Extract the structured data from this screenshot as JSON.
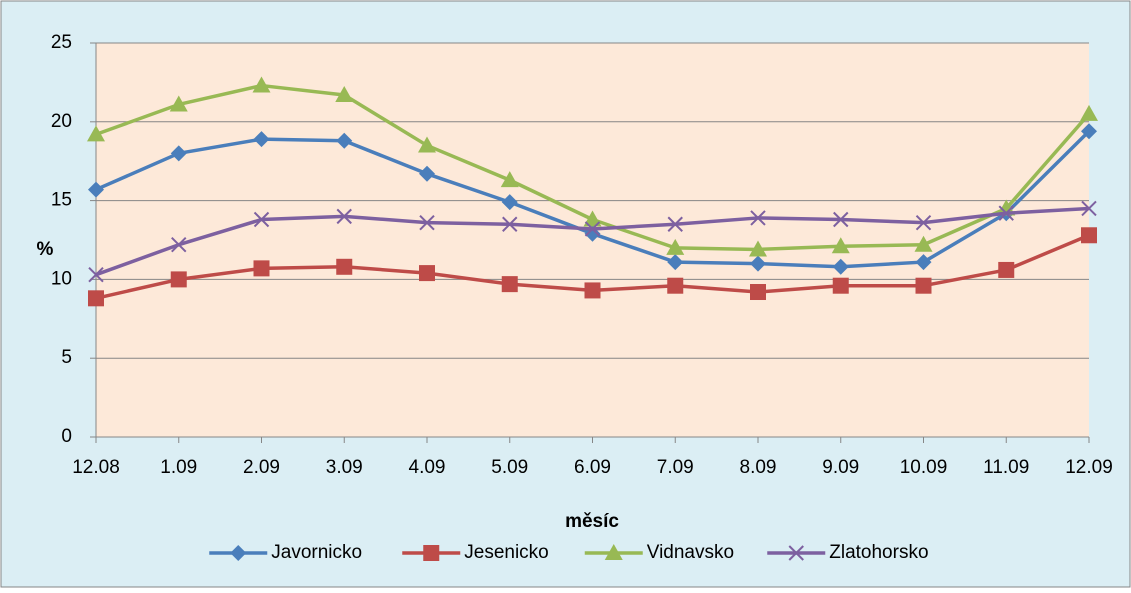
{
  "chart_data": {
    "type": "line",
    "categories": [
      "12.08",
      "1.09",
      "2.09",
      "3.09",
      "4.09",
      "5.09",
      "6.09",
      "7.09",
      "8.09",
      "9.09",
      "10.09",
      "11.09",
      "12.09"
    ],
    "series": [
      {
        "name": "Javornicko",
        "color": "#4a7ebb",
        "marker": "diamond",
        "values": [
          15.7,
          18.0,
          18.9,
          18.8,
          16.7,
          14.9,
          12.9,
          11.1,
          11.0,
          10.8,
          11.1,
          14.2,
          19.4
        ]
      },
      {
        "name": "Jesenicko",
        "color": "#be4b48",
        "marker": "square",
        "values": [
          8.8,
          10.0,
          10.7,
          10.8,
          10.4,
          9.7,
          9.3,
          9.6,
          9.2,
          9.6,
          9.6,
          10.6,
          12.8
        ]
      },
      {
        "name": "Vidnavsko",
        "color": "#98b954",
        "marker": "triangle",
        "values": [
          19.2,
          21.1,
          22.3,
          21.7,
          18.5,
          16.3,
          13.8,
          12.0,
          11.9,
          12.1,
          12.2,
          14.5,
          20.5
        ]
      },
      {
        "name": "Zlatohorsko",
        "color": "#7d60a0",
        "marker": "x",
        "values": [
          10.3,
          12.2,
          13.8,
          14.0,
          13.6,
          13.5,
          13.2,
          13.5,
          13.9,
          13.8,
          13.6,
          14.2,
          14.5
        ]
      }
    ],
    "x_label": "měsíc",
    "y_label": "%",
    "ylim": [
      0,
      25
    ],
    "yticks": [
      0,
      5,
      10,
      15,
      20,
      25
    ],
    "grid": true,
    "legend": "bottom"
  }
}
